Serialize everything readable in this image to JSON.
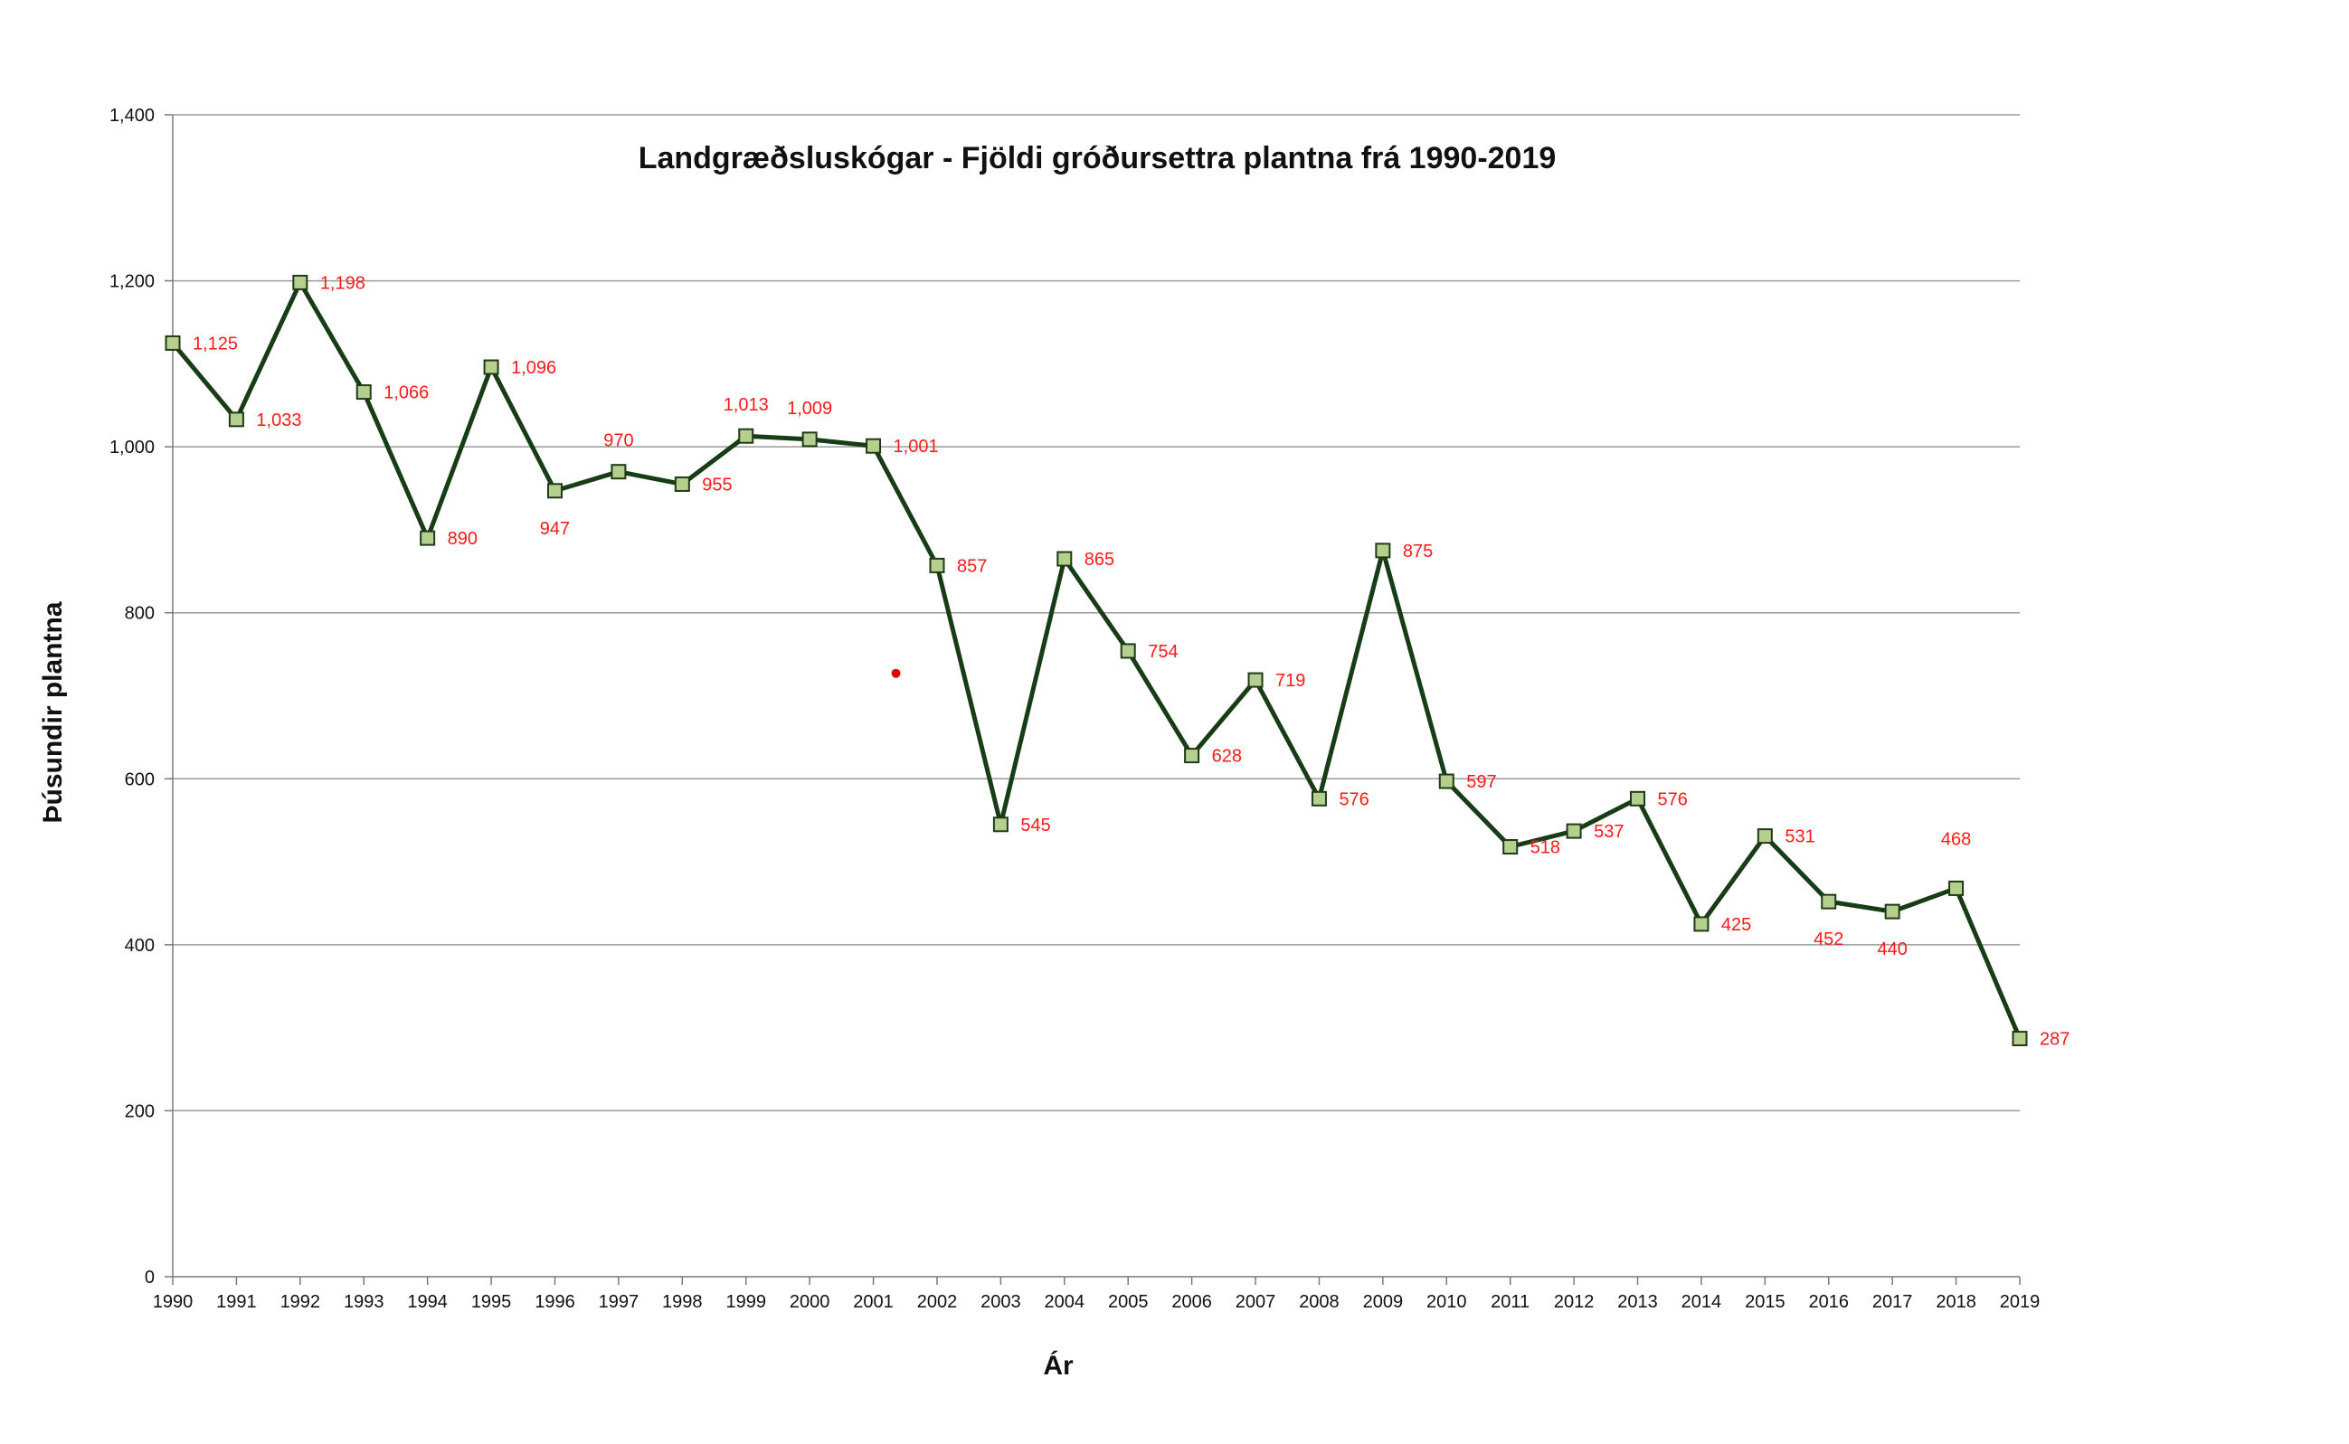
{
  "chart_data": {
    "type": "line",
    "title": "Landgræðsluskógar - Fjöldi gróðursettra plantna frá 1990-2019",
    "xlabel": "Ár",
    "ylabel": "Þúsundir plantna",
    "ylim": [
      0,
      1400
    ],
    "yticks": [
      "0",
      "200",
      "400",
      "600",
      "800",
      "1,000",
      "1,200",
      "1,400"
    ],
    "grid": true,
    "legend": "none",
    "categories": [
      "1990",
      "1991",
      "1992",
      "1993",
      "1994",
      "1995",
      "1996",
      "1997",
      "1998",
      "1999",
      "2000",
      "2001",
      "2002",
      "2003",
      "2004",
      "2005",
      "2006",
      "2007",
      "2008",
      "2009",
      "2010",
      "2011",
      "2012",
      "2013",
      "2014",
      "2015",
      "2016",
      "2017",
      "2018",
      "2019"
    ],
    "series": [
      {
        "values": [
          1125,
          1033,
          1198,
          1066,
          890,
          1096,
          947,
          970,
          955,
          1013,
          1009,
          1001,
          857,
          545,
          865,
          754,
          628,
          719,
          576,
          875,
          597,
          518,
          537,
          576,
          425,
          531,
          452,
          440,
          468,
          287
        ],
        "data_labels": [
          "1,125",
          "1,033",
          "1,198",
          "1,066",
          "890",
          "1,096",
          "947",
          "970",
          "955",
          "1,013",
          "1,009",
          "1,001",
          "857",
          "545",
          "865",
          "754",
          "628",
          "719",
          "576",
          "875",
          "597",
          "518",
          "537",
          "576",
          "425",
          "531",
          "452",
          "440",
          "468",
          "287"
        ]
      }
    ],
    "colors": {
      "line": "#173d17",
      "marker_fill": "#b5cf8e",
      "marker_stroke": "#1f3a14",
      "data_label": "#ff1a1a",
      "gridline": "#9a9a9a",
      "axis": "#7a7a7a",
      "stray_dot": "#e00000"
    },
    "stray_point": {
      "x": "2001",
      "y": 727
    }
  }
}
